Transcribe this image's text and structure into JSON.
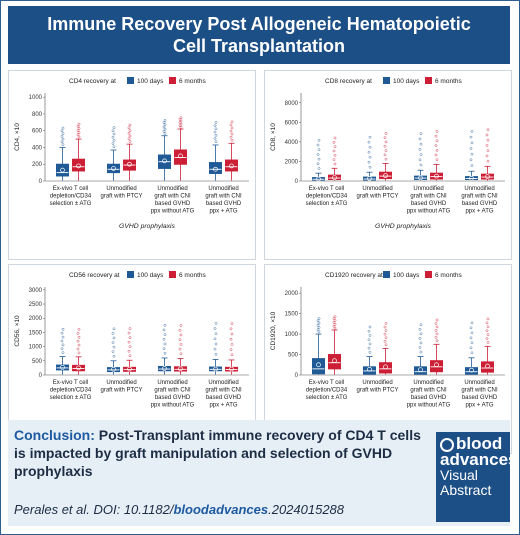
{
  "header": {
    "title_line1": "Immune Recovery Post Allogeneic Hematopoietic",
    "title_line2": "Cell Transplantation"
  },
  "colors": {
    "day100": "#1f5a96",
    "month6": "#cc1f36",
    "header_bg": "#1d4f87"
  },
  "legend": {
    "day100": "100 days",
    "month6": "6 months"
  },
  "xlabel": "GVHD prophylaxis",
  "chart_data": [
    {
      "type": "box",
      "title": "CD4 recovery at",
      "ylabel": "CD4, ×10",
      "yticks": [
        0,
        200,
        400,
        600,
        800,
        1000
      ],
      "ylim": [
        0,
        1050
      ],
      "categories": [
        "Ex-vivo T cell depletion/CD34 selection ± ATG",
        "Unmodified graft with PTCY",
        "Unmodified graft with CNI based GVHD ppx without ATG",
        "Unmodified graft with CNI based GVHD ppx + ATG"
      ],
      "series": [
        {
          "name": "100 days",
          "q1": [
            60,
            100,
            150,
            90
          ],
          "median": [
            100,
            140,
            230,
            140
          ],
          "q3": [
            200,
            200,
            310,
            220
          ],
          "whisker_hi": [
            400,
            370,
            540,
            430
          ],
          "mean": [
            130,
            150,
            240,
            140
          ]
        },
        {
          "name": "6 months",
          "q1": [
            120,
            130,
            200,
            120
          ],
          "median": [
            170,
            190,
            280,
            170
          ],
          "q3": [
            260,
            250,
            370,
            250
          ],
          "whisker_hi": [
            500,
            440,
            620,
            450
          ],
          "mean": [
            180,
            200,
            300,
            180
          ]
        }
      ]
    },
    {
      "type": "box",
      "title": "CD8 recovery at",
      "ylabel": "CD8, ×10",
      "yticks": [
        0,
        2000,
        4000,
        6000,
        8000
      ],
      "ylim": [
        0,
        9000
      ],
      "categories": [
        "Ex-vivo T cell depletion/CD34 selection ± ATG",
        "Unmodified graft with PTCY",
        "Unmodified graft with CNI based GVHD ppx without ATG",
        "Unmodified graft with CNI based GVHD ppx + ATG"
      ],
      "series": [
        {
          "name": "100 days",
          "q1": [
            100,
            100,
            150,
            150
          ],
          "median": [
            180,
            200,
            300,
            250
          ],
          "q3": [
            350,
            400,
            500,
            450
          ],
          "whisker_hi": [
            800,
            900,
            1100,
            1000
          ],
          "mean": [
            200,
            250,
            320,
            280
          ]
        },
        {
          "name": "6 months",
          "q1": [
            150,
            250,
            200,
            200
          ],
          "median": [
            300,
            500,
            450,
            400
          ],
          "q3": [
            600,
            900,
            800,
            700
          ],
          "whisker_hi": [
            1300,
            1800,
            1700,
            1500
          ],
          "mean": [
            350,
            550,
            500,
            450
          ]
        }
      ]
    },
    {
      "type": "box",
      "title": "CD56 recovery at",
      "ylabel": "CD56, ×10",
      "yticks": [
        0,
        500,
        1000,
        1500,
        2000,
        2500,
        3000
      ],
      "ylim": [
        0,
        3100
      ],
      "categories": [
        "Ex-vivo T cell depletion/CD34 selection ± ATG",
        "Unmodified graft with PTCY",
        "Unmodified graft with CNI based GVHD ppx without ATG",
        "Unmodified graft with CNI based GVHD ppx + ATG"
      ],
      "series": [
        {
          "name": "100 days",
          "q1": [
            180,
            120,
            150,
            150
          ],
          "median": [
            250,
            180,
            210,
            200
          ],
          "q3": [
            350,
            260,
            300,
            280
          ],
          "whisker_hi": [
            650,
            500,
            600,
            550
          ],
          "mean": [
            270,
            200,
            230,
            210
          ]
        },
        {
          "name": "6 months",
          "q1": [
            150,
            130,
            140,
            140
          ],
          "median": [
            230,
            190,
            200,
            190
          ],
          "q3": [
            340,
            270,
            290,
            270
          ],
          "whisker_hi": [
            640,
            520,
            580,
            530
          ],
          "mean": [
            250,
            210,
            220,
            210
          ]
        }
      ]
    },
    {
      "type": "box",
      "title": "CD1920 recovery at",
      "ylabel": "CD1920, ×10",
      "yticks": [
        0,
        500,
        1000,
        1500,
        2000
      ],
      "ylim": [
        0,
        2150
      ],
      "categories": [
        "Ex-vivo T cell depletion/CD34 selection ± ATG",
        "Unmodified graft with PTCY",
        "Unmodified graft with CNI based GVHD ppx without ATG",
        "Unmodified graft with CNI based GVHD ppx + ATG"
      ],
      "series": [
        {
          "name": "100 days",
          "q1": [
            30,
            20,
            20,
            20
          ],
          "median": [
            150,
            100,
            80,
            80
          ],
          "q3": [
            400,
            200,
            200,
            180
          ],
          "whisker_hi": [
            1000,
            450,
            450,
            420
          ],
          "mean": [
            250,
            140,
            130,
            120
          ]
        },
        {
          "name": "6 months",
          "q1": [
            150,
            50,
            80,
            70
          ],
          "median": [
            300,
            150,
            200,
            170
          ],
          "q3": [
            500,
            300,
            350,
            320
          ],
          "whisker_hi": [
            1100,
            650,
            750,
            700
          ],
          "mean": [
            350,
            200,
            250,
            220
          ]
        }
      ]
    }
  ],
  "footer": {
    "conclusion_lead": "Conclusion:",
    "conclusion_text": "Post-Transplant immune recovery of CD4 T cells is impacted by graft manipulation and selection of GVHD prophylaxis",
    "cite_authors": "Perales et al. DOI: 10.1182/",
    "cite_doi": "bloodadvances",
    "cite_suffix": ".2024015288",
    "logo_line1": "blood",
    "logo_line2": "advances",
    "logo_line3": "Visual",
    "logo_line4": "Abstract"
  }
}
